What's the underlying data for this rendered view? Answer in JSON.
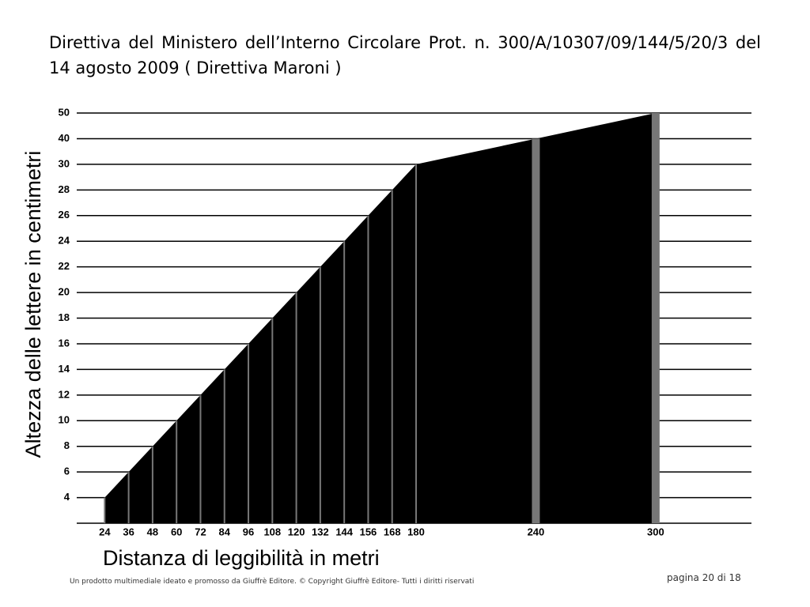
{
  "header": {
    "title": "Direttiva del Ministero dell’Interno Circolare Prot. n. 300/A/10307/09/144/5/20/3 del 14 agosto 2009 ( Direttiva Maroni )"
  },
  "chart_data": {
    "type": "area",
    "x_label": "Distanza di leggibilità in metri",
    "y_label": "Altezza delle lettere in centimetri",
    "x": [
      24,
      36,
      48,
      60,
      72,
      84,
      96,
      108,
      120,
      132,
      144,
      156,
      168,
      180,
      240,
      300
    ],
    "values": [
      4,
      6,
      8,
      10,
      12,
      14,
      16,
      18,
      20,
      22,
      24,
      26,
      28,
      30,
      40,
      50
    ],
    "color": "#000000",
    "xlim": [
      10,
      348
    ],
    "xticks": [
      24,
      36,
      48,
      60,
      72,
      84,
      96,
      108,
      120,
      132,
      144,
      156,
      168,
      180,
      240,
      300
    ],
    "ylim": [
      2,
      50
    ],
    "yticks": [
      4,
      6,
      8,
      10,
      12,
      14,
      16,
      18,
      20,
      22,
      24,
      26,
      28,
      30,
      40,
      50
    ],
    "grid": true
  },
  "footer": {
    "note": "Un prodotto multimediale ideato e promosso da Giuffrè Editore. © Copyright Giuffrè Editore- Tutti i diritti riservati",
    "page": "pagina 20 di 18"
  }
}
